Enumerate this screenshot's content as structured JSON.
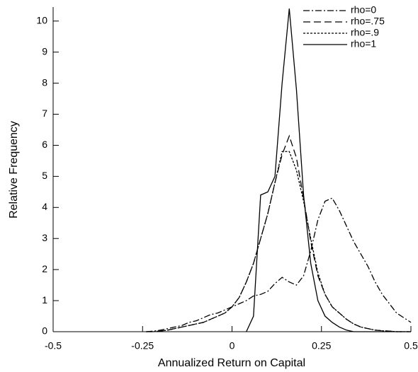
{
  "chart_data": {
    "type": "line",
    "xlabel": "Annualized Return on Capital",
    "ylabel": "Relative Frequency",
    "xlim": [
      -0.5,
      0.5
    ],
    "ylim": [
      0,
      10.45
    ],
    "xticks": [
      -0.5,
      -0.25,
      0,
      0.25,
      0.5
    ],
    "yticks": [
      0,
      1,
      2,
      3,
      4,
      5,
      6,
      7,
      8,
      9,
      10
    ],
    "legend": "upper right",
    "x": [
      -0.24,
      -0.22,
      -0.2,
      -0.18,
      -0.16,
      -0.14,
      -0.12,
      -0.1,
      -0.08,
      -0.06,
      -0.04,
      -0.02,
      0,
      0.02,
      0.04,
      0.06,
      0.08,
      0.1,
      0.12,
      0.14,
      0.16,
      0.18,
      0.2,
      0.22,
      0.24,
      0.26,
      0.28,
      0.3,
      0.32,
      0.34,
      0.36,
      0.38,
      0.4,
      0.42,
      0.44,
      0.46,
      0.48,
      0.5
    ],
    "series": [
      {
        "name": "rho=0",
        "color": "#000000",
        "dash": "dashdot",
        "values": [
          0,
          0.02,
          0.05,
          0.1,
          0.15,
          0.2,
          0.3,
          0.35,
          0.45,
          0.55,
          0.6,
          0.7,
          0.8,
          0.9,
          1.0,
          1.15,
          1.2,
          1.3,
          1.55,
          1.75,
          1.6,
          1.5,
          1.8,
          2.6,
          3.6,
          4.2,
          4.3,
          3.9,
          3.4,
          2.9,
          2.5,
          2.1,
          1.6,
          1.2,
          0.9,
          0.6,
          0.45,
          0.3
        ]
      },
      {
        "name": "rho=.75",
        "color": "#000000",
        "dash": "dash",
        "values": [
          0,
          0,
          0.02,
          0.05,
          0.1,
          0.15,
          0.2,
          0.25,
          0.3,
          0.4,
          0.5,
          0.6,
          0.8,
          1.1,
          1.6,
          2.2,
          3.0,
          3.8,
          4.8,
          5.7,
          6.3,
          5.6,
          4.3,
          2.9,
          1.8,
          1.2,
          0.8,
          0.6,
          0.4,
          0.25,
          0.15,
          0.1,
          0.05,
          0.03,
          0.02,
          0,
          0,
          0
        ]
      },
      {
        "name": "rho=.9",
        "color": "#000000",
        "dash": "dot",
        "values": [
          0,
          0,
          0.02,
          0.05,
          0.1,
          0.15,
          0.2,
          0.25,
          0.3,
          0.4,
          0.5,
          0.6,
          0.8,
          1.1,
          1.6,
          2.2,
          3.0,
          3.8,
          4.8,
          5.8,
          5.8,
          5.2,
          4.2,
          3.0,
          1.9,
          1.2,
          0.8,
          0.6,
          0.4,
          0.25,
          0.15,
          0.1,
          0.05,
          0.03,
          0.02,
          0,
          0,
          0
        ]
      },
      {
        "name": "rho=1",
        "color": "#000000",
        "dash": "solid",
        "values": [
          null,
          null,
          null,
          null,
          null,
          null,
          null,
          null,
          null,
          null,
          null,
          null,
          null,
          null,
          0,
          0.5,
          4.4,
          4.5,
          5.0,
          8.0,
          10.4,
          7.8,
          4.4,
          2.2,
          1.0,
          0.5,
          0.3,
          0.15,
          0.05,
          0,
          0,
          0,
          0,
          0,
          0,
          0,
          0,
          0
        ]
      }
    ]
  }
}
